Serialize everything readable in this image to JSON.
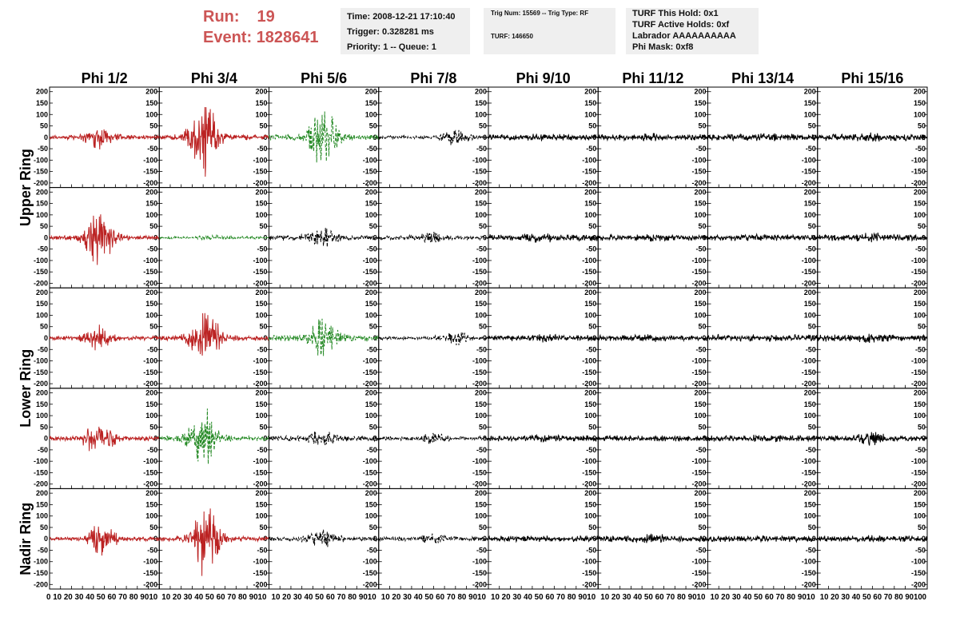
{
  "header": {
    "run_label": "Run:",
    "run_value": "19",
    "event_label": "Event:",
    "event_value": "1828641",
    "time": "Time: 2008-12-21 17:10:40",
    "trigger": "Trigger: 0.328281 ms",
    "priority": "Priority: 1 -- Queue: 1",
    "trig_num": "Trig Num: 15569 -- Trig Type: RF",
    "turf": "TURF: 146650",
    "turf_hold": "TURF This Hold: 0x1",
    "turf_active": "TURF Active Holds: 0xf",
    "labrador": "Labrador AAAAAAAAAA",
    "phi_mask": "Phi Mask: 0xf8"
  },
  "colors": {
    "red": "#bb2222",
    "green": "#228822",
    "black": "#000000",
    "run_text": "#cc5555",
    "info_bg": "#efefef"
  },
  "chart_data": {
    "type": "line",
    "columns": [
      "Phi 1/2",
      "Phi 3/4",
      "Phi 5/6",
      "Phi 7/8",
      "Phi 9/10",
      "Phi 11/12",
      "Phi 13/14",
      "Phi 15/16"
    ],
    "rings": [
      "Upper Ring",
      "Upper Ring",
      "Lower Ring",
      "Lower Ring",
      "Nadir Ring"
    ],
    "ring_labels": [
      "Upper Ring",
      "Lower Ring",
      "Nadir Ring"
    ],
    "xlim": [
      0,
      100
    ],
    "ylim": [
      -220,
      220
    ],
    "y_ticks": [
      -200,
      -150,
      -100,
      -50,
      0,
      50,
      100,
      150,
      200
    ],
    "x_ticks": [
      0,
      10,
      20,
      30,
      40,
      50,
      60,
      70,
      80,
      90,
      100
    ],
    "bottom_tick_text": [
      "0 10 20 30 40 50 60 70 80 9010",
      "10 20 30 40 50 60 70 80 9010",
      "10 20 30 40 50 60 70 80 9010",
      "10 20 30 40 50 60 70 80 9010",
      "10 20 30 40 50 60 70 80 9010",
      "10 20 30 40 50 60 70 80 9010",
      "10 20 30 40 50 60 70 80 9010",
      "10 20 30 40 50 60 70 80 90100"
    ],
    "panels": [
      [
        {
          "c": "red",
          "s": "solid",
          "a": 60,
          "n": 10,
          "p": 45
        },
        {
          "c": "red",
          "s": "solid",
          "a": 190,
          "n": 12,
          "p": 40
        },
        {
          "c": "green",
          "s": "dashed",
          "a": 150,
          "n": 14,
          "p": 50
        },
        {
          "c": "black",
          "s": "dashed",
          "a": 40,
          "n": 8,
          "p": 70
        },
        {
          "c": "black",
          "s": "solid",
          "a": 20,
          "n": 14,
          "p": 50
        },
        {
          "c": "black",
          "s": "solid",
          "a": 20,
          "n": 14,
          "p": 50
        },
        {
          "c": "black",
          "s": "solid",
          "a": 20,
          "n": 16,
          "p": 50
        },
        {
          "c": "black",
          "s": "solid",
          "a": 22,
          "n": 16,
          "p": 50
        }
      ],
      [
        {
          "c": "red",
          "s": "solid",
          "a": 160,
          "n": 10,
          "p": 45
        },
        {
          "c": "green",
          "s": "dashed",
          "a": 15,
          "n": 6,
          "p": 50
        },
        {
          "c": "black",
          "s": "dashed",
          "a": 45,
          "n": 12,
          "p": 50
        },
        {
          "c": "black",
          "s": "dashed",
          "a": 30,
          "n": 10,
          "p": 50
        },
        {
          "c": "black",
          "s": "solid",
          "a": 25,
          "n": 16,
          "p": 50
        },
        {
          "c": "black",
          "s": "solid",
          "a": 20,
          "n": 14,
          "p": 50
        },
        {
          "c": "black",
          "s": "solid",
          "a": 20,
          "n": 14,
          "p": 50
        },
        {
          "c": "black",
          "s": "solid",
          "a": 25,
          "n": 14,
          "p": 50
        }
      ],
      [
        {
          "c": "red",
          "s": "solid",
          "a": 60,
          "n": 10,
          "p": 45
        },
        {
          "c": "red",
          "s": "solid",
          "a": 150,
          "n": 12,
          "p": 42
        },
        {
          "c": "green",
          "s": "dashed",
          "a": 100,
          "n": 14,
          "p": 50
        },
        {
          "c": "black",
          "s": "dashed",
          "a": 35,
          "n": 8,
          "p": 70
        },
        {
          "c": "black",
          "s": "solid",
          "a": 22,
          "n": 14,
          "p": 50
        },
        {
          "c": "black",
          "s": "solid",
          "a": 18,
          "n": 14,
          "p": 50
        },
        {
          "c": "black",
          "s": "solid",
          "a": 18,
          "n": 16,
          "p": 50
        },
        {
          "c": "black",
          "s": "solid",
          "a": 22,
          "n": 16,
          "p": 50
        }
      ],
      [
        {
          "c": "red",
          "s": "solid",
          "a": 100,
          "n": 10,
          "p": 45
        },
        {
          "c": "green",
          "s": "dashed",
          "a": 160,
          "n": 12,
          "p": 40
        },
        {
          "c": "black",
          "s": "dashed",
          "a": 45,
          "n": 12,
          "p": 50
        },
        {
          "c": "black",
          "s": "dashed",
          "a": 30,
          "n": 10,
          "p": 50
        },
        {
          "c": "black",
          "s": "solid",
          "a": 18,
          "n": 14,
          "p": 50
        },
        {
          "c": "black",
          "s": "solid",
          "a": 15,
          "n": 14,
          "p": 50
        },
        {
          "c": "black",
          "s": "solid",
          "a": 18,
          "n": 14,
          "p": 50
        },
        {
          "c": "black",
          "s": "solid",
          "a": 35,
          "n": 14,
          "p": 50
        }
      ],
      [
        {
          "c": "red",
          "s": "solid",
          "a": 80,
          "n": 10,
          "p": 48
        },
        {
          "c": "red",
          "s": "solid",
          "a": 190,
          "n": 12,
          "p": 42
        },
        {
          "c": "black",
          "s": "dashed",
          "a": 45,
          "n": 12,
          "p": 50
        },
        {
          "c": "black",
          "s": "dashed",
          "a": 25,
          "n": 10,
          "p": 50
        },
        {
          "c": "black",
          "s": "solid",
          "a": 15,
          "n": 14,
          "p": 50
        },
        {
          "c": "black",
          "s": "solid",
          "a": 25,
          "n": 14,
          "p": 50
        },
        {
          "c": "black",
          "s": "solid",
          "a": 15,
          "n": 14,
          "p": 50
        },
        {
          "c": "black",
          "s": "solid",
          "a": 20,
          "n": 14,
          "p": 50
        }
      ]
    ]
  }
}
